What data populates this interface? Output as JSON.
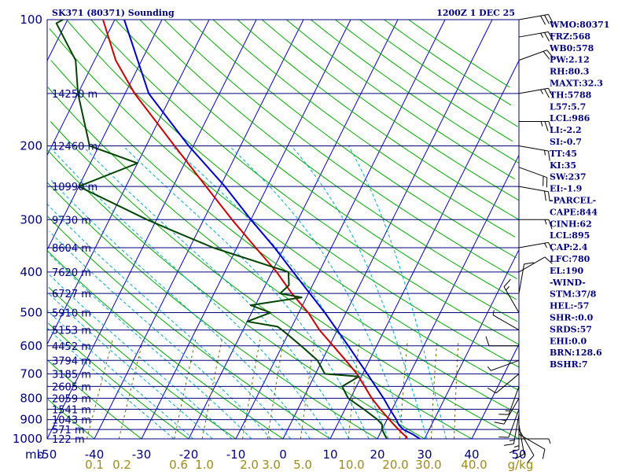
{
  "header": {
    "station": "SK371 (80371) Sounding",
    "time": "1200Z  1 DEC 25"
  },
  "indices": [
    "WMO:80371",
    "FRZ:568",
    "WB0:578",
    "PW:2.12",
    "RH:80.3",
    "MAXT:32.3",
    "TH:5788",
    "L57:5.7",
    "LCL:986",
    "LI:-2.2",
    "SI:-0.7",
    "TT:45",
    "KI:35",
    "SW:237",
    "EI:-1.9",
    "-PARCEL-",
    "CAPE:844",
    "CINH:62",
    "LCL:895",
    "CAP:2.4",
    "LFC:780",
    "EL:190",
    "-WIND-",
    "STM:37/8",
    "HEL:-57",
    "SHR-:0.0",
    "SRDS:57",
    "EHI:0.0",
    "BRN:128.6",
    "BSHR:7"
  ],
  "colors": {
    "isobar": "#00007f",
    "isotherm": "#0000cc",
    "dry_adiabat": "#00aa00",
    "moist_adiabat": "#00aacc",
    "mixing_ratio": "#6a6a00",
    "temperature": "#cc0000",
    "dewpoint": "#004400",
    "parcel": "#0000cc",
    "wind": "#000000",
    "mixing_label": "#a08a1a"
  },
  "chart_data": {
    "type": "skew-t",
    "pressure_axis": {
      "unit": "mb",
      "range": [
        1000,
        100
      ],
      "scale": "log",
      "labels": [
        100,
        200,
        300,
        400,
        500,
        600,
        700,
        800,
        900,
        1000
      ]
    },
    "temperature_axis": {
      "range": [
        -50,
        50
      ],
      "labels": [
        -50,
        -40,
        -30,
        -20,
        -10,
        0,
        10,
        20,
        30,
        40,
        50
      ]
    },
    "mixing_ratio_axis": {
      "unit": "g/kg",
      "labels": [
        0.1,
        0.2,
        0.6,
        1.0,
        2.0,
        3.0,
        5.0,
        10.0,
        20.0,
        30.0,
        40.0
      ]
    },
    "height_labels": [
      {
        "p": 150,
        "label": "14250 m"
      },
      {
        "p": 200,
        "label": "12460 m"
      },
      {
        "p": 250,
        "label": "10990 m"
      },
      {
        "p": 300,
        "label": "9730 m"
      },
      {
        "p": 350,
        "label": "8604 m"
      },
      {
        "p": 400,
        "label": "7620 m"
      },
      {
        "p": 450,
        "label": "6727 m"
      },
      {
        "p": 500,
        "label": "5910 m"
      },
      {
        "p": 550,
        "label": "5153 m"
      },
      {
        "p": 600,
        "label": "4452 m"
      },
      {
        "p": 650,
        "label": "3794 m"
      },
      {
        "p": 700,
        "label": "3185 m"
      },
      {
        "p": 750,
        "label": "2605 m"
      },
      {
        "p": 800,
        "label": "2059 m"
      },
      {
        "p": 850,
        "label": "1541 m"
      },
      {
        "p": 900,
        "label": "1043 m"
      },
      {
        "p": 950,
        "label": "571 m"
      },
      {
        "p": 1000,
        "label": "122 m"
      }
    ],
    "temperature": [
      {
        "p": 1000,
        "t": 25.9
      },
      {
        "p": 990,
        "t": 26.0
      },
      {
        "p": 975,
        "t": 25.0
      },
      {
        "p": 950,
        "t": 23.5
      },
      {
        "p": 925,
        "t": 22.0
      },
      {
        "p": 900,
        "t": 20.5
      },
      {
        "p": 850,
        "t": 17.5
      },
      {
        "p": 800,
        "t": 14.5
      },
      {
        "p": 700,
        "t": 8.8
      },
      {
        "p": 650,
        "t": 5.0
      },
      {
        "p": 600,
        "t": 0.8
      },
      {
        "p": 550,
        "t": -3.8
      },
      {
        "p": 500,
        "t": -8.0
      },
      {
        "p": 450,
        "t": -13.5
      },
      {
        "p": 400,
        "t": -19.0
      },
      {
        "p": 350,
        "t": -26.0
      },
      {
        "p": 300,
        "t": -34.0
      },
      {
        "p": 250,
        "t": -43.0
      },
      {
        "p": 200,
        "t": -54.0
      },
      {
        "p": 150,
        "t": -68.0
      },
      {
        "p": 125,
        "t": -75.5
      },
      {
        "p": 100,
        "t": -82.5
      }
    ],
    "dewpoint": [
      {
        "p": 1000,
        "t": 22.0
      },
      {
        "p": 975,
        "t": 21.0
      },
      {
        "p": 950,
        "t": 20.0
      },
      {
        "p": 925,
        "t": 19.5
      },
      {
        "p": 900,
        "t": 18.0
      },
      {
        "p": 850,
        "t": 14.0
      },
      {
        "p": 800,
        "t": 9.5
      },
      {
        "p": 750,
        "t": 7.0
      },
      {
        "p": 710,
        "t": 9.5
      },
      {
        "p": 700,
        "t": 2.0
      },
      {
        "p": 650,
        "t": -1.0
      },
      {
        "p": 600,
        "t": -6.0
      },
      {
        "p": 560,
        "t": -10.5
      },
      {
        "p": 540,
        "t": -13.0
      },
      {
        "p": 525,
        "t": -20.0
      },
      {
        "p": 500,
        "t": -16.0
      },
      {
        "p": 480,
        "t": -21.0
      },
      {
        "p": 460,
        "t": -11.0
      },
      {
        "p": 450,
        "t": -16.0
      },
      {
        "p": 430,
        "t": -15.0
      },
      {
        "p": 400,
        "t": -16.5
      },
      {
        "p": 350,
        "t": -35.0
      },
      {
        "p": 320,
        "t": -45.0
      },
      {
        "p": 300,
        "t": -52.0
      },
      {
        "p": 250,
        "t": -70.0
      },
      {
        "p": 220,
        "t": -60.0
      },
      {
        "p": 200,
        "t": -72.0
      },
      {
        "p": 150,
        "t": -80.0
      },
      {
        "p": 125,
        "t": -84.0
      },
      {
        "p": 102,
        "t": -92.0
      },
      {
        "p": 100,
        "t": -91.0
      }
    ],
    "parcel": [
      {
        "p": 1000,
        "t": 29.0
      },
      {
        "p": 975,
        "t": 27.0
      },
      {
        "p": 950,
        "t": 24.5
      },
      {
        "p": 925,
        "t": 23.0
      },
      {
        "p": 900,
        "t": 22.0
      },
      {
        "p": 850,
        "t": 19.5
      },
      {
        "p": 800,
        "t": 17.0
      },
      {
        "p": 700,
        "t": 11.0
      },
      {
        "p": 600,
        "t": 4.0
      },
      {
        "p": 500,
        "t": -4.5
      },
      {
        "p": 400,
        "t": -15.5
      },
      {
        "p": 350,
        "t": -22.0
      },
      {
        "p": 300,
        "t": -30.0
      },
      {
        "p": 250,
        "t": -39.0
      },
      {
        "p": 200,
        "t": -51.0
      },
      {
        "p": 150,
        "t": -65.0
      },
      {
        "p": 100,
        "t": -78.0
      }
    ],
    "wind_barbs": [
      {
        "p": 1000,
        "dir": 90,
        "spd": 5
      },
      {
        "p": 975,
        "dir": 120,
        "spd": 10
      },
      {
        "p": 950,
        "dir": 150,
        "spd": 10
      },
      {
        "p": 925,
        "dir": 170,
        "spd": 10
      },
      {
        "p": 900,
        "dir": 180,
        "spd": 15
      },
      {
        "p": 875,
        "dir": 190,
        "spd": 15
      },
      {
        "p": 850,
        "dir": 200,
        "spd": 10
      },
      {
        "p": 800,
        "dir": 210,
        "spd": 15
      },
      {
        "p": 750,
        "dir": 200,
        "spd": 15
      },
      {
        "p": 700,
        "dir": 230,
        "spd": 10
      },
      {
        "p": 650,
        "dir": 250,
        "spd": 5
      },
      {
        "p": 600,
        "dir": 270,
        "spd": 10
      },
      {
        "p": 550,
        "dir": 300,
        "spd": 5
      },
      {
        "p": 500,
        "dir": 330,
        "spd": 15
      },
      {
        "p": 450,
        "dir": 10,
        "spd": 10
      },
      {
        "p": 400,
        "dir": 60,
        "spd": 10
      },
      {
        "p": 350,
        "dir": 80,
        "spd": 15
      },
      {
        "p": 300,
        "dir": 90,
        "spd": 15
      },
      {
        "p": 250,
        "dir": 100,
        "spd": 20
      },
      {
        "p": 225,
        "dir": 110,
        "spd": 20
      },
      {
        "p": 200,
        "dir": 100,
        "spd": 15
      },
      {
        "p": 175,
        "dir": 90,
        "spd": 25
      },
      {
        "p": 150,
        "dir": 80,
        "spd": 25
      },
      {
        "p": 125,
        "dir": 70,
        "spd": 20
      },
      {
        "p": 110,
        "dir": 80,
        "spd": 25
      },
      {
        "p": 100,
        "dir": 80,
        "spd": 30
      }
    ]
  }
}
